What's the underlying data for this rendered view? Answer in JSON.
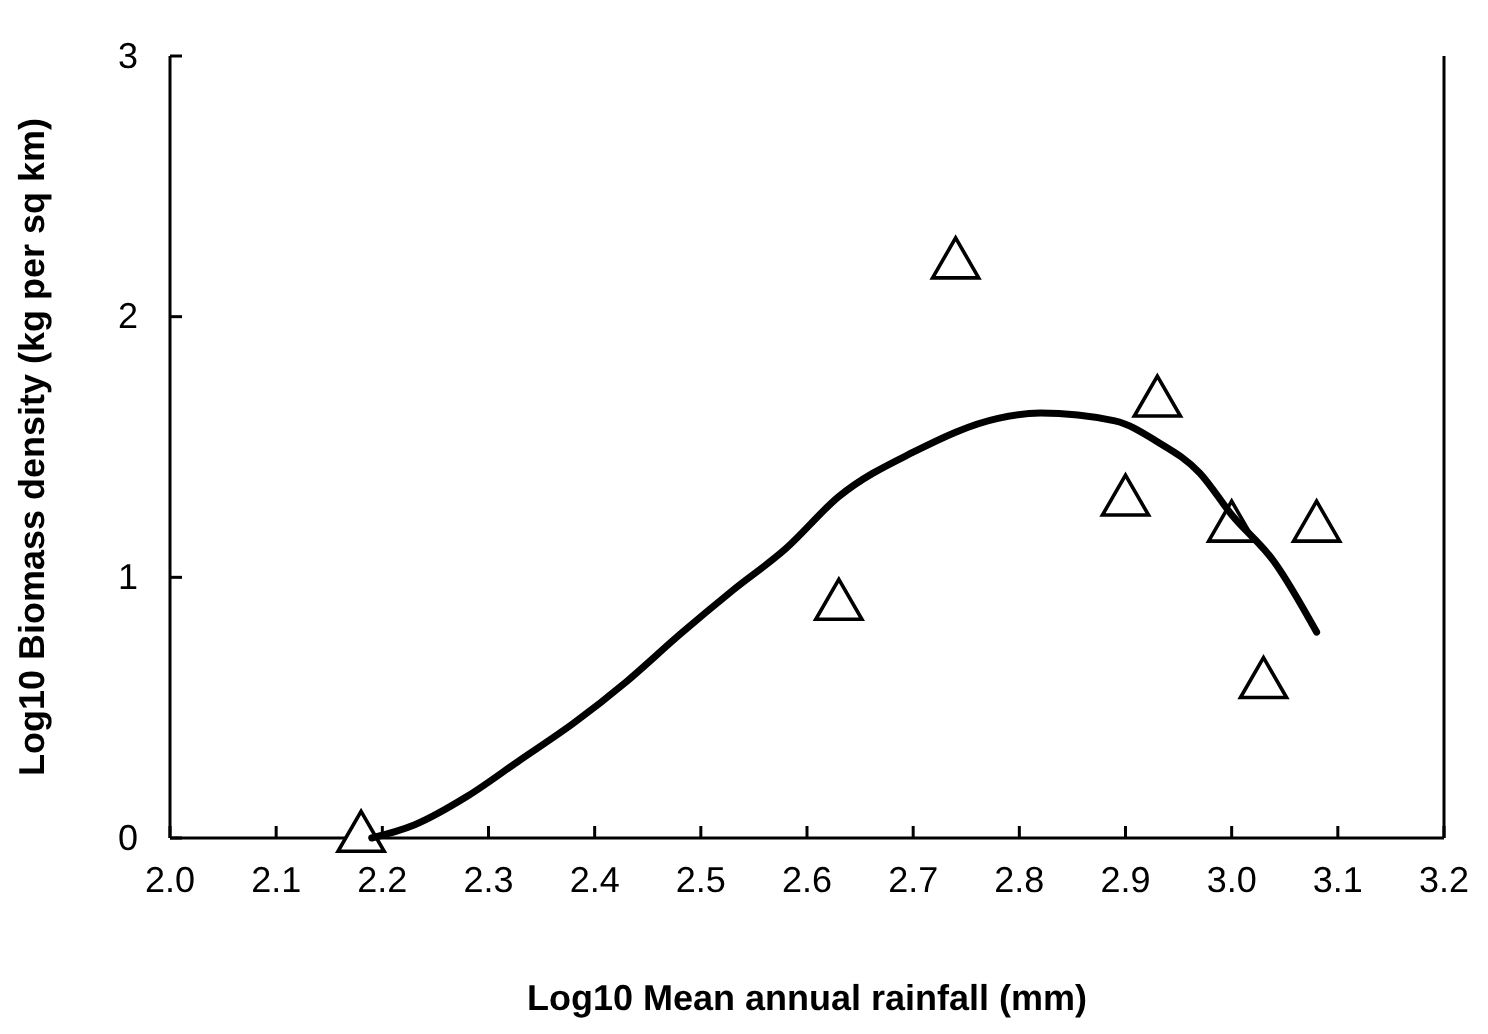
{
  "chart_data": {
    "type": "scatter",
    "xlabel": "Log10 Mean annual rainfall (mm)",
    "ylabel": "Log10 Biomass density (kg per sq km)",
    "xlim": [
      2.0,
      3.2
    ],
    "ylim": [
      0,
      3
    ],
    "xticks": [
      {
        "value": 2.0,
        "label": "2.0"
      },
      {
        "value": 2.1,
        "label": "2.1"
      },
      {
        "value": 2.2,
        "label": "2.2"
      },
      {
        "value": 2.3,
        "label": "2.3"
      },
      {
        "value": 2.4,
        "label": "2.4"
      },
      {
        "value": 2.5,
        "label": "2.5"
      },
      {
        "value": 2.6,
        "label": "2.6"
      },
      {
        "value": 2.7,
        "label": "2.7"
      },
      {
        "value": 2.8,
        "label": "2.8"
      },
      {
        "value": 2.9,
        "label": "2.9"
      },
      {
        "value": 3.0,
        "label": "3.0"
      },
      {
        "value": 3.1,
        "label": "3.1"
      },
      {
        "value": 3.2,
        "label": "3.2"
      }
    ],
    "yticks": [
      0,
      1,
      2,
      3
    ],
    "grid": false,
    "series": [
      {
        "marker": "triangle",
        "color": "#000000",
        "x": [
          2.18,
          2.63,
          2.74,
          2.9,
          2.93,
          3.0,
          3.03,
          3.08
        ],
        "values": [
          0,
          0.89,
          2.2,
          1.29,
          1.67,
          1.19,
          0.59,
          1.19
        ]
      },
      {
        "type": "line",
        "marker": "none",
        "line_style": "solid",
        "color": "#000000",
        "x": [
          2.19,
          2.23,
          2.28,
          2.33,
          2.38,
          2.43,
          2.48,
          2.53,
          2.58,
          2.63,
          2.7,
          2.78,
          2.82,
          2.89,
          2.93,
          2.97,
          3.0,
          3.04,
          3.08
        ],
        "values": [
          0,
          0.05,
          0.16,
          0.3,
          0.44,
          0.6,
          0.78,
          0.95,
          1.11,
          1.31,
          1.48,
          1.61,
          1.63,
          1.6,
          1.52,
          1.4,
          1.24,
          1.06,
          0.79
        ]
      }
    ]
  }
}
